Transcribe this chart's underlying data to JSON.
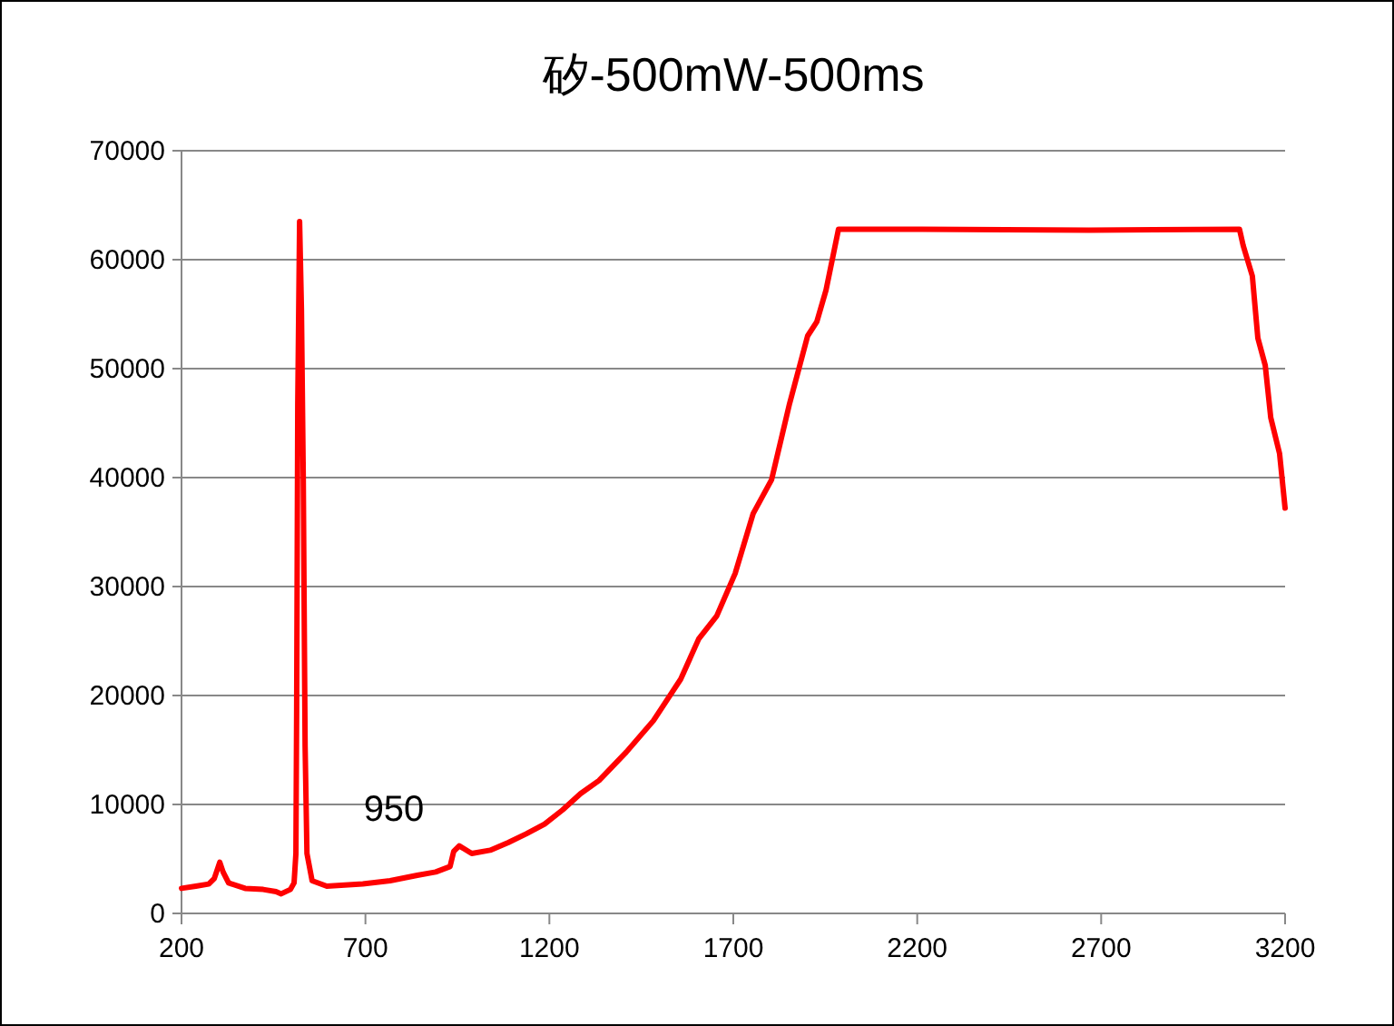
{
  "chart_data": {
    "type": "line",
    "title": "矽-500mW-500ms",
    "xlim": [
      200,
      3200
    ],
    "xticks": [
      200,
      700,
      1200,
      1700,
      2200,
      2700,
      3200
    ],
    "ylim": [
      0,
      70000
    ],
    "yticks": [
      0,
      10000,
      20000,
      30000,
      40000,
      50000,
      60000,
      70000
    ],
    "grid": "y",
    "marker": "none",
    "line_style": "solid",
    "annotations": [
      {
        "text": "950",
        "x": 950,
        "y": 6200
      }
    ],
    "series": [
      {
        "color": "#ff0000",
        "x": [
          200,
          239,
          274,
          289,
          304,
          313,
          328,
          373,
          422,
          457,
          471,
          496,
          506,
          511,
          513,
          516,
          521,
          526,
          531,
          536,
          541,
          555,
          595,
          693,
          767,
          841,
          891,
          930,
          940,
          955,
          989,
          1039,
          1088,
          1137,
          1187,
          1236,
          1285,
          1335,
          1409,
          1483,
          1557,
          1606,
          1655,
          1705,
          1754,
          1804,
          1853,
          1902,
          1927,
          1952,
          1986,
          2174,
          2667,
          3076,
          3086,
          3111,
          3126,
          3146,
          3161,
          3185,
          3200
        ],
        "values": [
          2300,
          2500,
          2700,
          3200,
          4700,
          3800,
          2800,
          2300,
          2200,
          2000,
          1800,
          2200,
          2800,
          5500,
          18500,
          46700,
          63500,
          55500,
          40000,
          15300,
          5500,
          3000,
          2500,
          2700,
          3000,
          3500,
          3800,
          4300,
          5700,
          6200,
          5500,
          5800,
          6500,
          7300,
          8200,
          9500,
          11000,
          12200,
          14800,
          17700,
          21500,
          25200,
          27300,
          31200,
          36700,
          39800,
          46800,
          53000,
          54300,
          57200,
          62800,
          62800,
          62700,
          62800,
          61300,
          58500,
          52800,
          50300,
          45500,
          42200,
          37200
        ]
      }
    ]
  }
}
